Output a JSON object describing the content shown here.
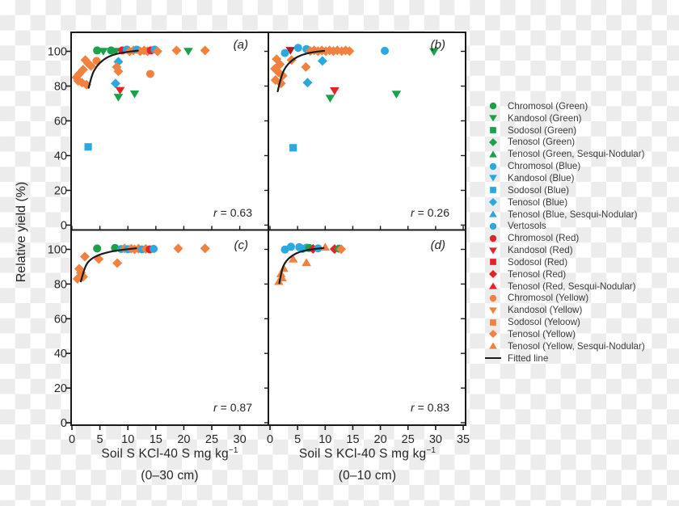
{
  "figure": {
    "ylabel": "Relative yield (%)",
    "xlabel_left_main": "Soil S KCl-40 S mg kg",
    "xlabel_right_main": "Soil S KCl-40 S mg kg",
    "xlabel_sup": "−1",
    "xlabel_left_sub": "(0–30 cm)",
    "xlabel_right_sub": "(0–10 cm)"
  },
  "palette": {
    "g": "#19a24a",
    "b": "#2aa9e0",
    "r": "#e22428",
    "dr": "#a81e24",
    "o": "#f0813f",
    "line": "#1c1c1c",
    "text": "#262626",
    "frame": "#1a1a1a"
  },
  "legend": {
    "items": [
      {
        "label": "Chromosol (Green)",
        "marker": "c",
        "color": "g"
      },
      {
        "label": "Kandosol (Green)",
        "marker": "v",
        "color": "g"
      },
      {
        "label": "Sodosol (Green)",
        "marker": "s",
        "color": "g"
      },
      {
        "label": "Tenosol (Green)",
        "marker": "d",
        "color": "g"
      },
      {
        "label": "Tenosol (Green, Sesqui-Nodular)",
        "marker": "^",
        "color": "g"
      },
      {
        "label": "Chromosol (Blue)",
        "marker": "c",
        "color": "b"
      },
      {
        "label": "Kandosol (Blue)",
        "marker": "v",
        "color": "b"
      },
      {
        "label": "Sodosol (Blue)",
        "marker": "s",
        "color": "b"
      },
      {
        "label": "Tenosol (Blue)",
        "marker": "d",
        "color": "b"
      },
      {
        "label": "Tenosol (Blue, Sesqui-Nodular)",
        "marker": "^",
        "color": "b"
      },
      {
        "label": "Vertosols",
        "marker": "c",
        "color": "b"
      },
      {
        "label": "Chromosol (Red)",
        "marker": "c",
        "color": "r"
      },
      {
        "label": "Kandosol (Red)",
        "marker": "v",
        "color": "r"
      },
      {
        "label": "Sodosol (Red)",
        "marker": "s",
        "color": "r"
      },
      {
        "label": "Tenosol (Red)",
        "marker": "d",
        "color": "r"
      },
      {
        "label": "Tenosol (Red, Sesqui-Nodular)",
        "marker": "^",
        "color": "r"
      },
      {
        "label": "Chromosol (Yellow)",
        "marker": "c",
        "color": "o"
      },
      {
        "label": "Kandosol (Yellow)",
        "marker": "v",
        "color": "o"
      },
      {
        "label": "Sodosol (Yeloow)",
        "marker": "s",
        "color": "o"
      },
      {
        "label": "Tenosol (Yellow)",
        "marker": "d",
        "color": "o"
      },
      {
        "label": "Tenosol (Yellow, Sesqui-Nodular)",
        "marker": "^",
        "color": "o"
      },
      {
        "label": "Fitted line",
        "marker": "line",
        "color": "line"
      }
    ]
  },
  "chart_data": {
    "type": "scatter",
    "xlim": [
      0,
      35
    ],
    "ylim": [
      0,
      110
    ],
    "y_ticks": [
      "100",
      "80",
      "60",
      "40",
      "20",
      "0"
    ],
    "x_ticks_left": [
      "0",
      "5",
      "10",
      "15",
      "20",
      "25",
      "30"
    ],
    "x_ticks_right": [
      "0",
      "5",
      "10",
      "15",
      "20",
      "25",
      "30",
      "35"
    ],
    "panels": [
      {
        "id": "(a)",
        "r_label": "r",
        "r_value": "= 0.63",
        "r": 0.63,
        "points": [
          [
            4.5,
            100.5,
            "c",
            "g"
          ],
          [
            5.6,
            100,
            "v",
            "g"
          ],
          [
            7,
            100.5,
            "c",
            "g"
          ],
          [
            7.8,
            100,
            "v",
            "g"
          ],
          [
            9,
            100.5,
            "c",
            "r"
          ],
          [
            9.8,
            101,
            "c",
            "b"
          ],
          [
            10.3,
            100,
            "d",
            "o"
          ],
          [
            11,
            100.5,
            "d",
            "o"
          ],
          [
            11.6,
            101,
            "c",
            "b"
          ],
          [
            12.2,
            100,
            "d",
            "o"
          ],
          [
            12.9,
            100.5,
            "d",
            "o"
          ],
          [
            13.5,
            100,
            "d",
            "o"
          ],
          [
            14.1,
            100.5,
            "c",
            "r"
          ],
          [
            14.8,
            101,
            "c",
            "b"
          ],
          [
            15.3,
            100,
            "d",
            "o"
          ],
          [
            18.7,
            100.5,
            "d",
            "o"
          ],
          [
            20.8,
            100,
            "v",
            "g"
          ],
          [
            23.8,
            100.5,
            "d",
            "o"
          ],
          [
            2.4,
            95,
            "d",
            "o"
          ],
          [
            4.4,
            94.5,
            "c",
            "o"
          ],
          [
            2.9,
            93,
            "d",
            "o"
          ],
          [
            3.4,
            91.5,
            "d",
            "o"
          ],
          [
            2,
            89.5,
            "d",
            "o"
          ],
          [
            1.3,
            87,
            "d",
            "o"
          ],
          [
            0.8,
            85,
            "d",
            "o"
          ],
          [
            1.1,
            83,
            "d",
            "o"
          ],
          [
            1.8,
            82,
            "d",
            "o"
          ],
          [
            2.6,
            80.8,
            "d",
            "o"
          ],
          [
            8.3,
            94,
            "d",
            "b"
          ],
          [
            8,
            91,
            "d",
            "o"
          ],
          [
            8.3,
            88.5,
            "d",
            "o"
          ],
          [
            14,
            87,
            "c",
            "o"
          ],
          [
            7.8,
            81.5,
            "d",
            "b"
          ],
          [
            8.6,
            77.5,
            "v",
            "r"
          ],
          [
            8.3,
            73.5,
            "v",
            "g"
          ],
          [
            11.2,
            75.5,
            "v",
            "g"
          ],
          [
            2.9,
            45,
            "s",
            "b"
          ]
        ],
        "fit": [
          [
            3,
            79
          ],
          [
            3.5,
            86
          ],
          [
            4.3,
            91
          ],
          [
            5.5,
            95
          ],
          [
            7,
            97.7
          ],
          [
            9,
            99.3
          ],
          [
            11.8,
            100.4
          ]
        ]
      },
      {
        "id": "(b)",
        "r_label": "r",
        "r_value": "= 0.26",
        "r": 0.26,
        "points": [
          [
            3.7,
            100.5,
            "v",
            "dr"
          ],
          [
            2.7,
            99,
            "c",
            "b"
          ],
          [
            5.1,
            102,
            "c",
            "b"
          ],
          [
            6.6,
            101.3,
            "c",
            "b"
          ],
          [
            7.3,
            100.2,
            "d",
            "o"
          ],
          [
            8,
            100.6,
            "d",
            "o"
          ],
          [
            8.7,
            100.1,
            "d",
            "o"
          ],
          [
            9.4,
            100.5,
            "d",
            "o"
          ],
          [
            10.1,
            100.1,
            "d",
            "o"
          ],
          [
            10.8,
            100.5,
            "d",
            "o"
          ],
          [
            11.5,
            100.1,
            "d",
            "o"
          ],
          [
            12.2,
            100.5,
            "d",
            "o"
          ],
          [
            13,
            100.1,
            "d",
            "o"
          ],
          [
            13.7,
            100.5,
            "d",
            "o"
          ],
          [
            14.4,
            100.1,
            "d",
            "o"
          ],
          [
            20.8,
            100.3,
            "c",
            "b"
          ],
          [
            29.7,
            99.8,
            "v",
            "g"
          ],
          [
            9.5,
            94.5,
            "d",
            "b"
          ],
          [
            1.2,
            95.5,
            "d",
            "o"
          ],
          [
            3.9,
            95,
            "d",
            "o"
          ],
          [
            1.8,
            92.5,
            "d",
            "o"
          ],
          [
            0.9,
            90,
            "d",
            "o"
          ],
          [
            1.5,
            88,
            "d",
            "o"
          ],
          [
            6.5,
            91,
            "d",
            "o"
          ],
          [
            2.3,
            86,
            "d",
            "o"
          ],
          [
            1,
            83.5,
            "d",
            "o"
          ],
          [
            2,
            81.5,
            "d",
            "o"
          ],
          [
            6.8,
            82,
            "d",
            "b"
          ],
          [
            11.7,
            77.3,
            "v",
            "r"
          ],
          [
            10.9,
            73,
            "v",
            "g"
          ],
          [
            22.9,
            75.3,
            "v",
            "g"
          ],
          [
            4.2,
            44.5,
            "s",
            "b"
          ]
        ],
        "fit": [
          [
            1.4,
            77
          ],
          [
            2,
            85.5
          ],
          [
            2.8,
            91
          ],
          [
            4,
            95
          ],
          [
            5.5,
            97.8
          ],
          [
            7.5,
            99.4
          ],
          [
            9.8,
            100.3
          ]
        ]
      },
      {
        "id": "(c)",
        "r_label": "r",
        "r_value": "= 0.87",
        "r": 0.87,
        "points": [
          [
            2.3,
            95.8,
            "d",
            "o"
          ],
          [
            1.3,
            88.8,
            "d",
            "o"
          ],
          [
            1.6,
            86.5,
            "d",
            "o"
          ],
          [
            2,
            84.2,
            "d",
            "o"
          ],
          [
            1,
            83,
            "d",
            "o"
          ],
          [
            4.8,
            94.4,
            "d",
            "o"
          ],
          [
            4.5,
            100.5,
            "c",
            "g"
          ],
          [
            7.7,
            100.8,
            "c",
            "g"
          ],
          [
            8.1,
            92.1,
            "d",
            "o"
          ],
          [
            8.8,
            100.2,
            "c",
            "b"
          ],
          [
            9.4,
            100.5,
            "d",
            "o"
          ],
          [
            10,
            100.1,
            "c",
            "b"
          ],
          [
            10.6,
            100.4,
            "d",
            "o"
          ],
          [
            11.2,
            100,
            "d",
            "o"
          ],
          [
            11.9,
            100.4,
            "d",
            "o"
          ],
          [
            12.5,
            100,
            "c",
            "b"
          ],
          [
            13.2,
            100.3,
            "d",
            "o"
          ],
          [
            13.9,
            100,
            "c",
            "r"
          ],
          [
            14.6,
            100.3,
            "c",
            "b"
          ],
          [
            19,
            100.5,
            "d",
            "o"
          ],
          [
            23.8,
            100.5,
            "d",
            "o"
          ]
        ],
        "fit": [
          [
            1.6,
            81.5
          ],
          [
            2.2,
            89
          ],
          [
            3,
            93.5
          ],
          [
            4.5,
            96.5
          ],
          [
            6.5,
            98.5
          ],
          [
            9,
            99.8
          ],
          [
            11.5,
            100.6
          ]
        ]
      },
      {
        "id": "(d)",
        "r_label": "r",
        "r_value": "= 0.83",
        "r": 0.83,
        "points": [
          [
            2.7,
            99.9,
            "c",
            "b"
          ],
          [
            3.8,
            101.5,
            "c",
            "b"
          ],
          [
            5.3,
            101.3,
            "c",
            "b"
          ],
          [
            5.9,
            100.3,
            "c",
            "b"
          ],
          [
            6.6,
            101,
            "c",
            "b"
          ],
          [
            7.1,
            100.8,
            "c",
            "g"
          ],
          [
            7.8,
            100.3,
            "d",
            "r"
          ],
          [
            8.7,
            100.6,
            "c",
            "b"
          ],
          [
            10,
            101.3,
            "^",
            "o"
          ],
          [
            11.7,
            100.2,
            "d",
            "r"
          ],
          [
            12.5,
            100.4,
            "c",
            "g"
          ],
          [
            12.9,
            100.1,
            "d",
            "o"
          ],
          [
            4.2,
            94.4,
            "^",
            "o"
          ],
          [
            6.6,
            92.4,
            "^",
            "o"
          ],
          [
            2.5,
            89,
            "^",
            "o"
          ],
          [
            2,
            86,
            "^",
            "o"
          ],
          [
            2.2,
            83.6,
            "^",
            "o"
          ],
          [
            1.6,
            81.5,
            "^",
            "o"
          ]
        ],
        "fit": [
          [
            1.7,
            80.5
          ],
          [
            2.1,
            88
          ],
          [
            2.8,
            93
          ],
          [
            4,
            96.5
          ],
          [
            5.5,
            98.8
          ],
          [
            7.5,
            100
          ],
          [
            9.7,
            100.8
          ]
        ]
      }
    ]
  }
}
